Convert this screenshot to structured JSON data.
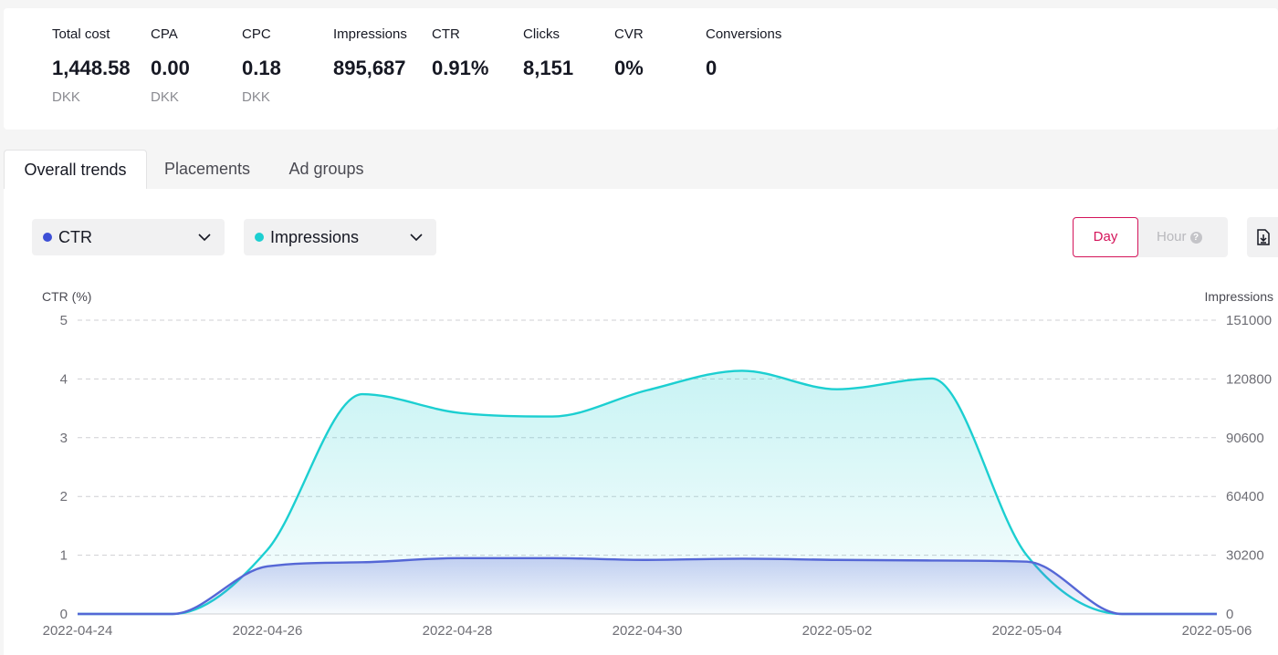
{
  "summary": {
    "metrics": [
      {
        "label": "Total cost",
        "value": "1,448.58",
        "unit": "DKK"
      },
      {
        "label": "CPA",
        "value": "0.00",
        "unit": "DKK"
      },
      {
        "label": "CPC",
        "value": "0.18",
        "unit": "DKK"
      },
      {
        "label": "Impressions",
        "value": "895,687",
        "unit": ""
      },
      {
        "label": "CTR",
        "value": "0.91%",
        "unit": ""
      },
      {
        "label": "Clicks",
        "value": "8,151",
        "unit": ""
      },
      {
        "label": "CVR",
        "value": "0%",
        "unit": ""
      },
      {
        "label": "Conversions",
        "value": "0",
        "unit": ""
      }
    ]
  },
  "tabs": [
    {
      "label": "Overall trends",
      "active": true
    },
    {
      "label": "Placements",
      "active": false
    },
    {
      "label": "Ad groups",
      "active": false
    }
  ],
  "controls": {
    "metric_left": {
      "label": "CTR",
      "color": "#3d4fd6",
      "icon": "chevron-down-icon"
    },
    "metric_right": {
      "label": "Impressions",
      "color": "#1ccfd1",
      "icon": "chevron-down-icon"
    },
    "granularity": {
      "day_label": "Day",
      "hour_label": "Hour",
      "hour_icon": "question-icon",
      "selected": "Day"
    },
    "download_icon": "download-icon",
    "accent_color": "#d4145a"
  },
  "chart_data": {
    "type": "area",
    "x": [
      "2022-04-24",
      "2022-04-25",
      "2022-04-26",
      "2022-04-27",
      "2022-04-28",
      "2022-04-29",
      "2022-04-30",
      "2022-05-01",
      "2022-05-02",
      "2022-05-03",
      "2022-05-04",
      "2022-05-05",
      "2022-05-06"
    ],
    "xticks": [
      "2022-04-24",
      "2022-04-26",
      "2022-04-28",
      "2022-04-30",
      "2022-05-02",
      "2022-05-04",
      "2022-05-06"
    ],
    "series": [
      {
        "name": "Impressions",
        "axis": "right",
        "color": "#1ccfd1",
        "values": [
          0,
          0,
          33000,
          113000,
          103500,
          101500,
          115000,
          125000,
          115500,
          121000,
          30000,
          0,
          0
        ]
      },
      {
        "name": "CTR",
        "axis": "left",
        "color": "#5567d6",
        "values": [
          0,
          0,
          0.81,
          0.88,
          0.95,
          0.95,
          0.92,
          0.94,
          0.92,
          0.91,
          0.89,
          0,
          0
        ]
      }
    ],
    "left_axis": {
      "label": "CTR (%)",
      "ticks": [
        "0",
        "1",
        "2",
        "3",
        "4",
        "5"
      ],
      "ylim": [
        0,
        5
      ]
    },
    "right_axis": {
      "label": "Impressions",
      "ticks": [
        "0",
        "30200",
        "60400",
        "90600",
        "120800",
        "151000"
      ],
      "ylim": [
        0,
        151000
      ]
    },
    "grid": true
  }
}
